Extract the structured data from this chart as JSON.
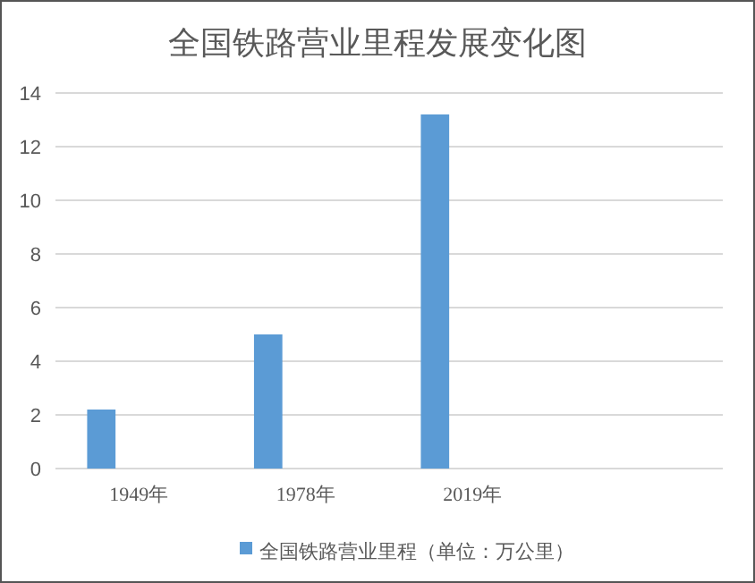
{
  "chart_data": {
    "type": "bar",
    "title": "全国铁路营业里程发展变化图",
    "categories": [
      "1949年",
      "1978年",
      "2019年",
      null
    ],
    "series": [
      {
        "name": "全国铁路营业里程（单位：万公里）",
        "color": "#5b9bd5",
        "values": [
          2.2,
          5.0,
          13.2,
          null
        ]
      }
    ],
    "ylim": [
      0,
      14
    ],
    "yticks": [
      0,
      2,
      4,
      6,
      8,
      10,
      12,
      14
    ],
    "grid": "y",
    "legend": "bottom"
  }
}
